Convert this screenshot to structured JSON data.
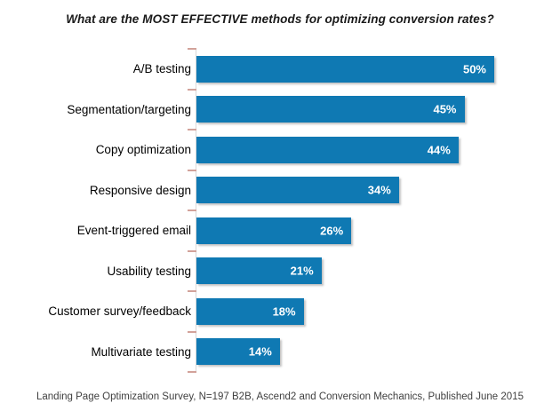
{
  "title": "What are the MOST EFFECTIVE methods for optimizing conversion rates?",
  "footer": "Landing Page Optimization Survey, N=197 B2B, Ascend2 and Conversion Mechanics, Published June 2015",
  "colors": {
    "background": "#ffffff",
    "bar": "#0f79b3",
    "value_label": "#ffffff",
    "axis": "#d9d9d9",
    "tick": "#d2a29a",
    "title_text": "#1a1a1a",
    "footer_text": "#3f3f3f"
  },
  "chart_data": {
    "type": "bar",
    "orientation": "horizontal",
    "title": "What are the MOST EFFECTIVE methods for optimizing conversion rates?",
    "categories": [
      "A/B testing",
      "Segmentation/targeting",
      "Copy optimization",
      "Responsive design",
      "Event-triggered email",
      "Usability testing",
      "Customer survey/feedback",
      "Multivariate testing"
    ],
    "values": [
      50,
      45,
      44,
      34,
      26,
      21,
      18,
      14
    ],
    "value_labels": [
      "50%",
      "45%",
      "44%",
      "34%",
      "26%",
      "21%",
      "18%",
      "14%"
    ],
    "xlabel": "",
    "ylabel": "",
    "xlim": [
      0,
      50
    ],
    "grid": false,
    "legend": false,
    "value_label_position": "inside-end",
    "source_note": "Landing Page Optimization Survey, N=197 B2B, Ascend2 and Conversion Mechanics, Published June 2015"
  }
}
